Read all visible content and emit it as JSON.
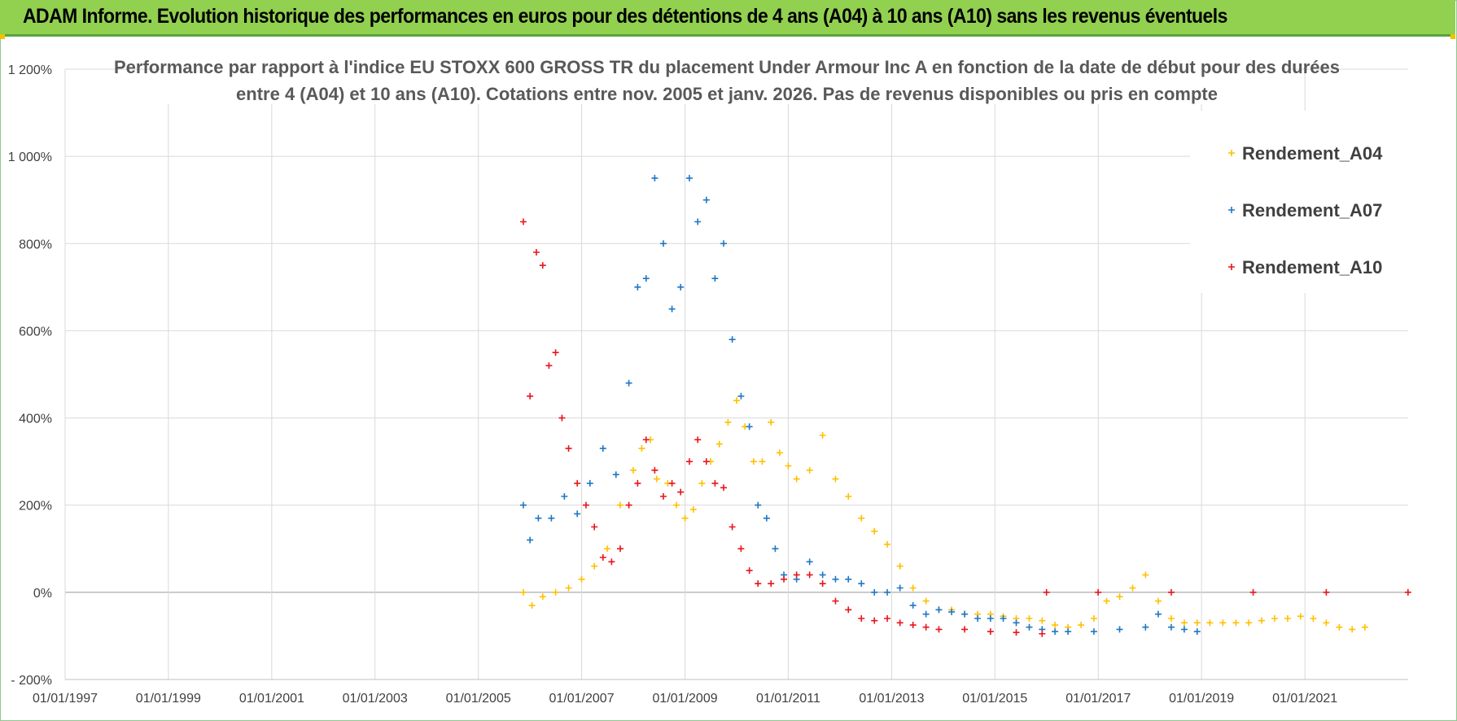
{
  "banner": {
    "title": "ADAM Informe. Evolution historique des performances en euros pour des détentions de 4 ans (A04) à 10 ans (A10) sans les revenus éventuels"
  },
  "chart_data": {
    "type": "scatter",
    "title_lines": [
      "Performance par rapport à l'indice EU STOXX 600 GROSS TR  du placement Under Armour Inc A en fonction de la date de début pour des durées",
      "entre 4 (A04) et 10 ans (A10). Cotations entre nov. 2005 et janv. 2026. Pas de revenus disponibles ou pris en compte"
    ],
    "x_axis": {
      "type": "date",
      "range": [
        "1997-01-01",
        "2023-01-01"
      ],
      "tick_labels": [
        "01/01/1997",
        "01/01/1999",
        "01/01/2001",
        "01/01/2003",
        "01/01/2005",
        "01/01/2007",
        "01/01/2009",
        "01/01/2011",
        "01/01/2013",
        "01/01/2015",
        "01/01/2017",
        "01/01/2019",
        "01/01/2021"
      ]
    },
    "y_axis": {
      "range": [
        -200,
        1200
      ],
      "unit": "%",
      "tick_labels": [
        "1 200%",
        "1 000%",
        "800%",
        "600%",
        "400%",
        "200%",
        "0%",
        "- 200%"
      ]
    },
    "grid": true,
    "legend_position": "top-right",
    "marker": "+",
    "series": [
      {
        "name": "Rendement_A04",
        "color": "#ffc000",
        "points": [
          [
            "2005-11-15",
            0
          ],
          [
            "2006-01-15",
            -30
          ],
          [
            "2006-04-01",
            -10
          ],
          [
            "2006-07-01",
            0
          ],
          [
            "2006-10-01",
            10
          ],
          [
            "2007-01-01",
            30
          ],
          [
            "2007-04-01",
            60
          ],
          [
            "2007-07-01",
            100
          ],
          [
            "2007-10-01",
            200
          ],
          [
            "2008-01-01",
            280
          ],
          [
            "2008-03-01",
            330
          ],
          [
            "2008-05-01",
            350
          ],
          [
            "2008-06-15",
            260
          ],
          [
            "2008-09-01",
            250
          ],
          [
            "2008-11-01",
            200
          ],
          [
            "2009-01-01",
            170
          ],
          [
            "2009-03-01",
            190
          ],
          [
            "2009-05-01",
            250
          ],
          [
            "2009-07-01",
            300
          ],
          [
            "2009-09-01",
            340
          ],
          [
            "2009-11-01",
            390
          ],
          [
            "2010-01-01",
            440
          ],
          [
            "2010-03-01",
            380
          ],
          [
            "2010-05-01",
            300
          ],
          [
            "2010-07-01",
            300
          ],
          [
            "2010-09-01",
            390
          ],
          [
            "2010-11-01",
            320
          ],
          [
            "2011-01-01",
            290
          ],
          [
            "2011-03-01",
            260
          ],
          [
            "2011-06-01",
            280
          ],
          [
            "2011-09-01",
            360
          ],
          [
            "2011-12-01",
            260
          ],
          [
            "2012-03-01",
            220
          ],
          [
            "2012-06-01",
            170
          ],
          [
            "2012-09-01",
            140
          ],
          [
            "2012-12-01",
            110
          ],
          [
            "2013-03-01",
            60
          ],
          [
            "2013-06-01",
            10
          ],
          [
            "2013-09-01",
            -20
          ],
          [
            "2013-12-01",
            -40
          ],
          [
            "2014-03-01",
            -40
          ],
          [
            "2014-06-01",
            -50
          ],
          [
            "2014-09-01",
            -50
          ],
          [
            "2014-12-01",
            -50
          ],
          [
            "2015-03-01",
            -55
          ],
          [
            "2015-06-01",
            -60
          ],
          [
            "2015-09-01",
            -60
          ],
          [
            "2015-12-01",
            -65
          ],
          [
            "2016-03-01",
            -75
          ],
          [
            "2016-06-01",
            -80
          ],
          [
            "2016-09-01",
            -75
          ],
          [
            "2016-12-01",
            -60
          ],
          [
            "2017-03-01",
            -20
          ],
          [
            "2017-06-01",
            -10
          ],
          [
            "2017-09-01",
            10
          ],
          [
            "2017-12-01",
            40
          ],
          [
            "2018-03-01",
            -20
          ],
          [
            "2018-06-01",
            -60
          ],
          [
            "2018-09-01",
            -70
          ],
          [
            "2018-12-01",
            -70
          ],
          [
            "2019-03-01",
            -70
          ],
          [
            "2019-06-01",
            -70
          ],
          [
            "2019-09-01",
            -70
          ],
          [
            "2019-12-01",
            -70
          ],
          [
            "2020-03-01",
            -65
          ],
          [
            "2020-06-01",
            -60
          ],
          [
            "2020-09-01",
            -60
          ],
          [
            "2020-12-01",
            -55
          ],
          [
            "2021-03-01",
            -60
          ],
          [
            "2021-06-01",
            -70
          ],
          [
            "2021-09-01",
            -80
          ],
          [
            "2021-12-01",
            -85
          ],
          [
            "2022-03-01",
            -80
          ]
        ]
      },
      {
        "name": "Rendement_A07",
        "color": "#1f77c4",
        "points": [
          [
            "2005-11-15",
            200
          ],
          [
            "2006-01-01",
            120
          ],
          [
            "2006-03-01",
            170
          ],
          [
            "2006-06-01",
            170
          ],
          [
            "2006-09-01",
            220
          ],
          [
            "2006-12-01",
            180
          ],
          [
            "2007-03-01",
            250
          ],
          [
            "2007-06-01",
            330
          ],
          [
            "2007-09-01",
            270
          ],
          [
            "2007-12-01",
            480
          ],
          [
            "2008-02-01",
            700
          ],
          [
            "2008-04-01",
            720
          ],
          [
            "2008-06-01",
            950
          ],
          [
            "2008-08-01",
            800
          ],
          [
            "2008-10-01",
            650
          ],
          [
            "2008-12-01",
            700
          ],
          [
            "2009-02-01",
            950
          ],
          [
            "2009-04-01",
            850
          ],
          [
            "2009-06-01",
            900
          ],
          [
            "2009-08-01",
            720
          ],
          [
            "2009-10-01",
            800
          ],
          [
            "2009-12-01",
            580
          ],
          [
            "2010-02-01",
            450
          ],
          [
            "2010-04-01",
            380
          ],
          [
            "2010-06-01",
            200
          ],
          [
            "2010-08-01",
            170
          ],
          [
            "2010-10-01",
            100
          ],
          [
            "2010-12-01",
            40
          ],
          [
            "2011-03-01",
            30
          ],
          [
            "2011-06-01",
            70
          ],
          [
            "2011-09-01",
            40
          ],
          [
            "2011-12-01",
            30
          ],
          [
            "2012-03-01",
            30
          ],
          [
            "2012-06-01",
            20
          ],
          [
            "2012-09-01",
            0
          ],
          [
            "2012-12-01",
            0
          ],
          [
            "2013-03-01",
            10
          ],
          [
            "2013-06-01",
            -30
          ],
          [
            "2013-09-01",
            -50
          ],
          [
            "2013-12-01",
            -40
          ],
          [
            "2014-03-01",
            -45
          ],
          [
            "2014-06-01",
            -50
          ],
          [
            "2014-09-01",
            -60
          ],
          [
            "2014-12-01",
            -60
          ],
          [
            "2015-03-01",
            -60
          ],
          [
            "2015-06-01",
            -70
          ],
          [
            "2015-09-01",
            -80
          ],
          [
            "2015-12-01",
            -85
          ],
          [
            "2016-03-01",
            -90
          ],
          [
            "2016-06-01",
            -90
          ],
          [
            "2016-12-01",
            -90
          ],
          [
            "2017-06-01",
            -85
          ],
          [
            "2017-12-01",
            -80
          ],
          [
            "2018-03-01",
            -50
          ],
          [
            "2018-06-01",
            -80
          ],
          [
            "2018-09-01",
            -85
          ],
          [
            "2018-12-01",
            -90
          ]
        ]
      },
      {
        "name": "Rendement_A10",
        "color": "#e8141c",
        "points": [
          [
            "2005-11-15",
            850
          ],
          [
            "2006-01-01",
            450
          ],
          [
            "2006-02-15",
            780
          ],
          [
            "2006-04-01",
            750
          ],
          [
            "2006-05-15",
            520
          ],
          [
            "2006-07-01",
            550
          ],
          [
            "2006-08-15",
            400
          ],
          [
            "2006-10-01",
            330
          ],
          [
            "2006-12-01",
            250
          ],
          [
            "2007-02-01",
            200
          ],
          [
            "2007-04-01",
            150
          ],
          [
            "2007-06-01",
            80
          ],
          [
            "2007-08-01",
            70
          ],
          [
            "2007-10-01",
            100
          ],
          [
            "2007-12-01",
            200
          ],
          [
            "2008-02-01",
            250
          ],
          [
            "2008-04-01",
            350
          ],
          [
            "2008-06-01",
            280
          ],
          [
            "2008-08-01",
            220
          ],
          [
            "2008-10-01",
            250
          ],
          [
            "2008-12-01",
            230
          ],
          [
            "2009-02-01",
            300
          ],
          [
            "2009-04-01",
            350
          ],
          [
            "2009-06-01",
            300
          ],
          [
            "2009-08-01",
            250
          ],
          [
            "2009-10-01",
            240
          ],
          [
            "2009-12-01",
            150
          ],
          [
            "2010-02-01",
            100
          ],
          [
            "2010-04-01",
            50
          ],
          [
            "2010-06-01",
            20
          ],
          [
            "2010-09-01",
            20
          ],
          [
            "2010-12-01",
            30
          ],
          [
            "2011-03-01",
            40
          ],
          [
            "2011-06-01",
            40
          ],
          [
            "2011-09-01",
            20
          ],
          [
            "2011-12-01",
            -20
          ],
          [
            "2012-03-01",
            -40
          ],
          [
            "2012-06-01",
            -60
          ],
          [
            "2012-09-01",
            -65
          ],
          [
            "2012-12-01",
            -60
          ],
          [
            "2013-03-01",
            -70
          ],
          [
            "2013-06-01",
            -75
          ],
          [
            "2013-09-01",
            -80
          ],
          [
            "2013-12-01",
            -85
          ],
          [
            "2014-06-01",
            -85
          ],
          [
            "2014-12-01",
            -90
          ],
          [
            "2015-06-01",
            -92
          ],
          [
            "2015-12-01",
            -95
          ],
          [
            "2016-01-01",
            0
          ],
          [
            "2016-12-31",
            0
          ],
          [
            "2018-06-01",
            0
          ],
          [
            "2020-01-01",
            0
          ],
          [
            "2021-06-01",
            0
          ],
          [
            "2022-12-31",
            0
          ]
        ]
      }
    ]
  }
}
